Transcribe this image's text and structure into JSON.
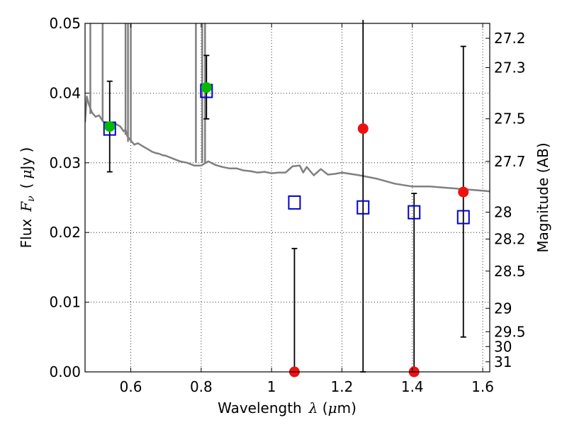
{
  "chart_data": {
    "type": "scatter",
    "title": "",
    "xlabel": "Wavelength",
    "xlabel_symbol": "λ",
    "xlabel_unit_open": " (",
    "xlabel_unit_mu": "μ",
    "xlabel_unit_rest": "m)",
    "ylabel": "Flux",
    "ylabel_symbol": "F",
    "ylabel_sub": "ν",
    "ylabel_unit_open": "(",
    "ylabel_unit_mu": "μ",
    "ylabel_unit_rest": "Jy )",
    "y2label": "Magnitude (AB)",
    "xlim": [
      0.47,
      1.62
    ],
    "ylim": [
      0.0,
      0.05
    ],
    "grid": true,
    "x_ticks": [
      {
        "value": 0.6,
        "label": "0.6"
      },
      {
        "value": 0.8,
        "label": "0.8"
      },
      {
        "value": 1.0,
        "label": "1"
      },
      {
        "value": 1.2,
        "label": "1.2"
      },
      {
        "value": 1.4,
        "label": "1.4"
      },
      {
        "value": 1.6,
        "label": "1.6"
      }
    ],
    "y_ticks": [
      {
        "value": 0.0,
        "label": "0.00"
      },
      {
        "value": 0.01,
        "label": "0.01"
      },
      {
        "value": 0.02,
        "label": "0.02"
      },
      {
        "value": 0.03,
        "label": "0.03"
      },
      {
        "value": 0.04,
        "label": "0.04"
      },
      {
        "value": 0.05,
        "label": "0.05"
      }
    ],
    "magnitude_ticks": [
      {
        "value": 27.2,
        "label": "27.2"
      },
      {
        "value": 27.3,
        "label": "27.3"
      },
      {
        "value": 27.5,
        "label": "27.5"
      },
      {
        "value": 27.7,
        "label": "27.7"
      },
      {
        "value": 28.0,
        "label": "28"
      },
      {
        "value": 28.2,
        "label": "28.2"
      },
      {
        "value": 28.5,
        "label": "28.5"
      },
      {
        "value": 29.0,
        "label": "29"
      },
      {
        "value": 29.5,
        "label": "29.5"
      },
      {
        "value": 30.0,
        "label": "30"
      },
      {
        "value": 31.0,
        "label": "31"
      }
    ],
    "series": [
      {
        "name": "model-spectrum",
        "kind": "line",
        "color": "#808080",
        "x": [
          0.47,
          0.475,
          0.48,
          0.485,
          0.49,
          0.5,
          0.51,
          0.52,
          0.53,
          0.54,
          0.55,
          0.56,
          0.57,
          0.58,
          0.585,
          0.59,
          0.6,
          0.61,
          0.62,
          0.63,
          0.64,
          0.65,
          0.66,
          0.67,
          0.68,
          0.69,
          0.7,
          0.72,
          0.74,
          0.76,
          0.78,
          0.8,
          0.82,
          0.84,
          0.86,
          0.88,
          0.9,
          0.92,
          0.94,
          0.96,
          0.98,
          1.0,
          1.02,
          1.04,
          1.06,
          1.08,
          1.09,
          1.1,
          1.12,
          1.14,
          1.16,
          1.18,
          1.2,
          1.25,
          1.3,
          1.35,
          1.4,
          1.45,
          1.5,
          1.55,
          1.6,
          1.62
        ],
        "y": [
          0.0358,
          0.0395,
          0.0385,
          0.0378,
          0.0372,
          0.0366,
          0.0368,
          0.036,
          0.0356,
          0.0354,
          0.0357,
          0.0355,
          0.0352,
          0.0345,
          0.0348,
          0.0338,
          0.0332,
          0.0326,
          0.0328,
          0.0325,
          0.0322,
          0.0319,
          0.0316,
          0.0314,
          0.0313,
          0.0311,
          0.031,
          0.0306,
          0.0302,
          0.03,
          0.0296,
          0.0296,
          0.0302,
          0.0297,
          0.0294,
          0.0292,
          0.0292,
          0.0289,
          0.0288,
          0.0286,
          0.0287,
          0.0285,
          0.0286,
          0.0286,
          0.0295,
          0.0296,
          0.0286,
          0.0294,
          0.0282,
          0.0291,
          0.0283,
          0.0284,
          0.0286,
          0.0282,
          0.0277,
          0.027,
          0.0266,
          0.0266,
          0.0264,
          0.0262,
          0.026,
          0.0259
        ]
      },
      {
        "name": "model-photometry",
        "kind": "open-square",
        "color": "#0000cc",
        "x": [
          0.54,
          0.815,
          1.065,
          1.26,
          1.405,
          1.545
        ],
        "y": [
          0.0349,
          0.0403,
          0.0243,
          0.0236,
          0.0229,
          0.0222
        ]
      },
      {
        "name": "observed-detections",
        "kind": "filled-circle",
        "color": "#00bb00",
        "x": [
          0.54,
          0.815
        ],
        "y": [
          0.0352,
          0.0408
        ]
      },
      {
        "name": "observed-nondetections",
        "kind": "filled-circle",
        "color": "#ee1111",
        "x": [
          1.065,
          1.26,
          1.405,
          1.545
        ],
        "y": [
          0.0,
          0.0349,
          0.0,
          0.0258
        ]
      }
    ],
    "error_bars": [
      {
        "x": 0.54,
        "low": 0.0287,
        "high": 0.0417
      },
      {
        "x": 0.815,
        "low": 0.0363,
        "high": 0.0454
      },
      {
        "x": 1.065,
        "low": 0.0,
        "high": 0.0177
      },
      {
        "x": 1.26,
        "low": 0.0,
        "high": 0.0505
      },
      {
        "x": 1.405,
        "low": 0.0,
        "high": 0.0256
      },
      {
        "x": 1.545,
        "low": 0.005,
        "high": 0.0467
      }
    ],
    "spikes": [
      {
        "x": 0.485,
        "base": 0.037
      },
      {
        "x": 0.52,
        "base": 0.036
      },
      {
        "x": 0.585,
        "base": 0.034
      },
      {
        "x": 0.592,
        "base": 0.033
      },
      {
        "x": 0.6,
        "base": 0.033
      },
      {
        "x": 0.785,
        "base": 0.03
      },
      {
        "x": 0.803,
        "base": 0.03
      },
      {
        "x": 0.811,
        "base": 0.03
      }
    ]
  }
}
